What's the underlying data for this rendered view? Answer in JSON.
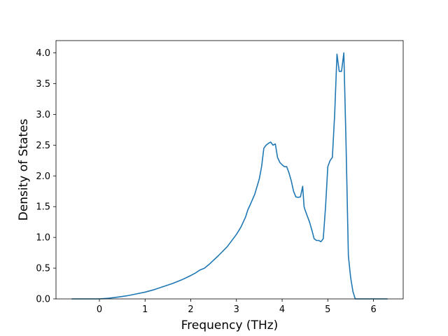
{
  "chart_data": {
    "type": "line",
    "title": "",
    "xlabel": "Frequency (THz)",
    "ylabel": "Density of States",
    "xlim": [
      -0.95,
      6.65
    ],
    "ylim": [
      0,
      4.2
    ],
    "xticks": [
      0,
      1,
      2,
      3,
      4,
      5,
      6
    ],
    "yticks": [
      0.0,
      0.5,
      1.0,
      1.5,
      2.0,
      2.5,
      3.0,
      3.5,
      4.0
    ],
    "xtick_labels": [
      "0",
      "1",
      "2",
      "3",
      "4",
      "5",
      "6"
    ],
    "ytick_labels": [
      "0.0",
      "0.5",
      "1.0",
      "1.5",
      "2.0",
      "2.5",
      "3.0",
      "3.5",
      "4.0"
    ],
    "grid": false,
    "legend": "none",
    "line_color": "#1f77b4",
    "series": [
      {
        "x": [
          -0.6,
          -0.2,
          0.0,
          0.2,
          0.4,
          0.6,
          0.8,
          1.0,
          1.2,
          1.4,
          1.6,
          1.8,
          2.0,
          2.1,
          2.2,
          2.3,
          2.4,
          2.6,
          2.8,
          3.0,
          3.1,
          3.2,
          3.25,
          3.3,
          3.4,
          3.5,
          3.55,
          3.6,
          3.65,
          3.7,
          3.75,
          3.8,
          3.85,
          3.9,
          3.95,
          4.0,
          4.05,
          4.1,
          4.15,
          4.2,
          4.25,
          4.3,
          4.35,
          4.4,
          4.45,
          4.48,
          4.5,
          4.55,
          4.6,
          4.65,
          4.7,
          4.75,
          4.8,
          4.85,
          4.9,
          4.95,
          5.0,
          5.05,
          5.1,
          5.15,
          5.2,
          5.25,
          5.3,
          5.35,
          5.4,
          5.45,
          5.5,
          5.55,
          5.6,
          5.65,
          5.7,
          5.75,
          6.0,
          6.3
        ],
        "y": [
          0.0,
          0.0,
          0.0,
          0.01,
          0.03,
          0.05,
          0.08,
          0.11,
          0.15,
          0.2,
          0.25,
          0.31,
          0.38,
          0.42,
          0.47,
          0.5,
          0.56,
          0.7,
          0.85,
          1.05,
          1.17,
          1.33,
          1.45,
          1.53,
          1.7,
          1.95,
          2.15,
          2.45,
          2.5,
          2.53,
          2.55,
          2.5,
          2.52,
          2.3,
          2.22,
          2.18,
          2.15,
          2.15,
          2.05,
          1.92,
          1.75,
          1.66,
          1.65,
          1.66,
          1.83,
          1.5,
          1.45,
          1.35,
          1.25,
          1.12,
          0.98,
          0.95,
          0.95,
          0.93,
          0.98,
          1.5,
          2.15,
          2.25,
          2.3,
          3.0,
          3.98,
          3.7,
          3.7,
          4.0,
          2.5,
          0.7,
          0.35,
          0.12,
          0.0,
          0.0,
          0.0,
          0.0,
          0.0,
          0.0
        ]
      }
    ]
  }
}
